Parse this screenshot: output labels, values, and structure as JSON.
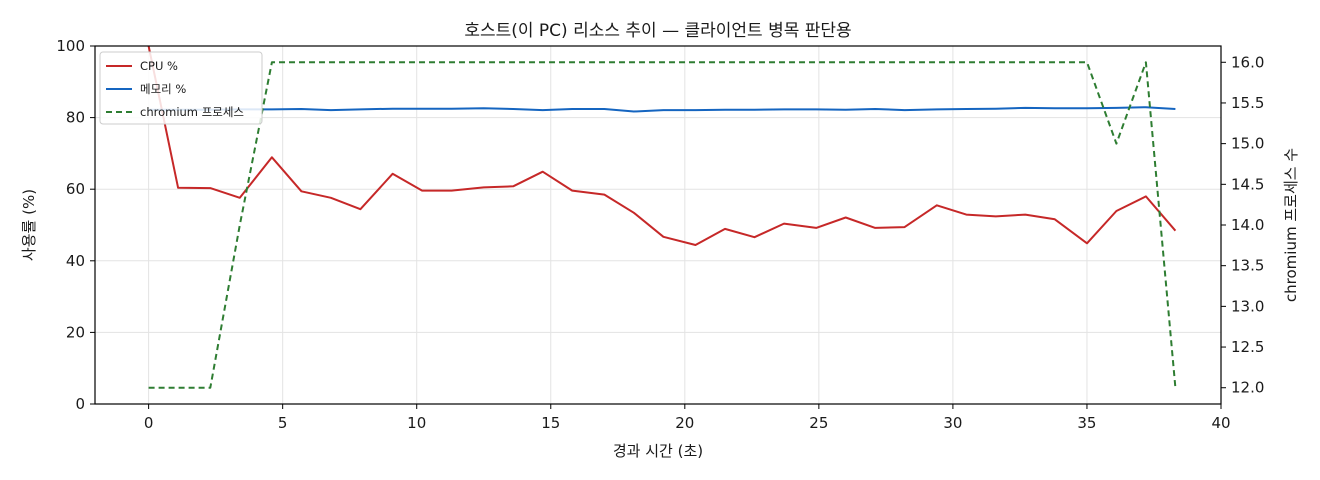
{
  "chart_data": {
    "type": "line",
    "title": "호스트(이 PC) 리소스 추이 — 클라이언트 병목 판단용",
    "xlabel": "경과 시간 (초)",
    "ylabel": "사용률 (%)",
    "y2label": "chromium 프로세스 수",
    "xlim": [
      -2,
      40
    ],
    "ylim": [
      0,
      100
    ],
    "y2lim": [
      11.8,
      16.2
    ],
    "xticks": [
      "0",
      "5",
      "10",
      "15",
      "20",
      "25",
      "30",
      "35",
      "40"
    ],
    "yticks": [
      "0",
      "20",
      "40",
      "60",
      "80",
      "100"
    ],
    "y2ticks": [
      "12.0",
      "12.5",
      "13.0",
      "13.5",
      "14.0",
      "14.5",
      "15.0",
      "15.5",
      "16.0"
    ],
    "grid": true,
    "legend_position": "top-left",
    "x": [
      0,
      1.1,
      2.3,
      3.4,
      4.6,
      5.7,
      6.8,
      7.9,
      9.1,
      10.2,
      11.3,
      12.5,
      13.6,
      14.7,
      15.8,
      17.0,
      18.1,
      19.2,
      20.4,
      21.5,
      22.6,
      23.7,
      24.9,
      26.0,
      27.1,
      28.2,
      29.4,
      30.5,
      31.6,
      32.7,
      33.8,
      35.0,
      36.1,
      37.2,
      38.3
    ],
    "series": [
      {
        "name": "CPU %",
        "axis": "left",
        "style": "solid",
        "color": "#c62828",
        "values": [
          100,
          60.4,
          60.3,
          57.6,
          68.9,
          59.4,
          57.6,
          54.4,
          64.3,
          59.6,
          59.6,
          60.5,
          60.8,
          64.9,
          59.6,
          58.5,
          53.4,
          46.7,
          44.4,
          48.9,
          46.6,
          50.4,
          49.2,
          52.1,
          49.2,
          49.4,
          55.5,
          52.9,
          52.4,
          52.9,
          51.6,
          44.9,
          53.9,
          58.0,
          48.4
        ]
      },
      {
        "name": "메모리 %",
        "axis": "left",
        "style": "solid",
        "color": "#1565c0",
        "values": [
          82.2,
          82.2,
          82.2,
          82.3,
          82.3,
          82.4,
          82.1,
          82.3,
          82.5,
          82.5,
          82.5,
          82.6,
          82.4,
          82.1,
          82.4,
          82.4,
          81.7,
          82.1,
          82.1,
          82.2,
          82.2,
          82.3,
          82.3,
          82.2,
          82.4,
          82.1,
          82.3,
          82.4,
          82.5,
          82.7,
          82.6,
          82.6,
          82.7,
          82.9,
          82.4
        ]
      },
      {
        "name": "chromium 프로세스",
        "axis": "right",
        "style": "dashed",
        "color": "#2e7d32",
        "values": [
          12,
          12,
          12,
          14,
          16,
          16,
          16,
          16,
          16,
          16,
          16,
          16,
          16,
          16,
          16,
          16,
          16,
          16,
          16,
          16,
          16,
          16,
          16,
          16,
          16,
          16,
          16,
          16,
          16,
          16,
          16,
          16,
          15,
          16,
          12
        ]
      }
    ]
  }
}
